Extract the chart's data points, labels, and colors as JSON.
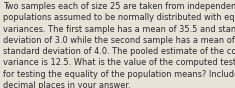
{
  "text": "Two samples each of size 25 are taken from independent\npopulations assumed to be normally distributed with equal\nvariances. The first sample has a mean of 35.5 and standard\ndeviation of 3.0 while the second sample has a mean of 33.0 and\nstandard deviation of 4.0. The pooled estimate of the common\nvariance is 12.5. What is the value of the computed test statistic\nfor testing the equality of the population means? Include 2\ndecimal places in your answer.",
  "background_color": "#e8e3d8",
  "text_color": "#2b2b2b",
  "font_size": 5.95,
  "fig_width": 2.35,
  "fig_height": 0.88,
  "dpi": 100
}
